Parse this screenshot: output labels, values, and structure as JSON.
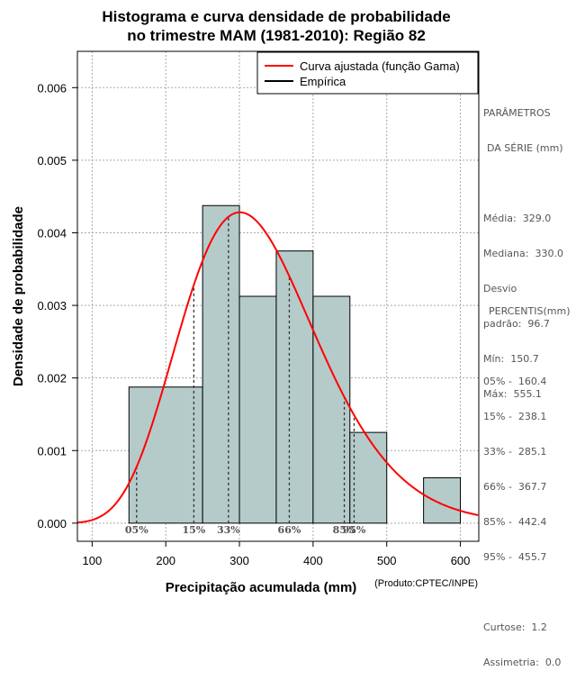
{
  "chart_data": {
    "type": "bar",
    "title_line1": "Histograma e curva densidade de probabilidade",
    "title_line2": "no trimestre MAM (1981-2010): Região 82",
    "xlabel": "Precipitação acumulada (mm)",
    "ylabel": "Densidade de probabilidade",
    "xlim": [
      80,
      625
    ],
    "ylim": [
      -0.00025,
      0.0065
    ],
    "x_ticks": [
      100,
      200,
      300,
      400,
      500,
      600
    ],
    "y_ticks": [
      0.0,
      0.001,
      0.002,
      0.003,
      0.004,
      0.005,
      0.006
    ],
    "y_tick_labels": [
      "0.000",
      "0.001",
      "0.002",
      "0.003",
      "0.004",
      "0.005",
      "0.006"
    ],
    "bins": [
      {
        "start": 150,
        "end": 250,
        "density": 0.001875
      },
      {
        "start": 250,
        "end": 300,
        "density": 0.004375
      },
      {
        "start": 300,
        "end": 350,
        "density": 0.003125
      },
      {
        "start": 350,
        "end": 400,
        "density": 0.00375
      },
      {
        "start": 400,
        "end": 450,
        "density": 0.003125
      },
      {
        "start": 450,
        "end": 500,
        "density": 0.00125
      },
      {
        "start": 550,
        "end": 600,
        "density": 0.000625
      }
    ],
    "gamma_fit": {
      "mean": 329.0,
      "sd": 96.7
    },
    "percentile_markers": [
      {
        "label": "05%",
        "x": 160.4
      },
      {
        "label": "15%",
        "x": 238.1
      },
      {
        "label": "33%",
        "x": 285.1
      },
      {
        "label": "66%",
        "x": 367.7
      },
      {
        "label": "85%",
        "x": 442.4
      },
      {
        "label": "95%",
        "x": 455.7
      }
    ],
    "legend": [
      {
        "label": "Curva ajustada (função Gama)",
        "color": "#ff0000"
      },
      {
        "label": "Empírica",
        "color": "#000000"
      }
    ],
    "colors": {
      "bar_fill": "#b4cbca",
      "curve": "#ff0000",
      "grid": "#a8a8a8"
    },
    "credit": "(Produto:CPTEC/INPE)"
  },
  "stats_panel": {
    "header_line1": "PARÂMETROS",
    "header_line2": "DA SÉRIE (mm)",
    "lines": [
      "Média:  329.0",
      "Mediana:  330.0",
      "Desvio",
      "padrão:  96.7",
      "Mín:  150.7",
      "Máx:  555.1"
    ]
  },
  "percentiles_panel": {
    "header": "PERCENTIS(mm)",
    "lines": [
      "05% -  160.4",
      "15% -  238.1",
      "33% -  285.1",
      "66% -  367.7",
      "85% -  442.4",
      "95% -  455.7"
    ],
    "extra_lines": [
      "Curtose:  1.2",
      "Assimetria:  0.0"
    ]
  }
}
